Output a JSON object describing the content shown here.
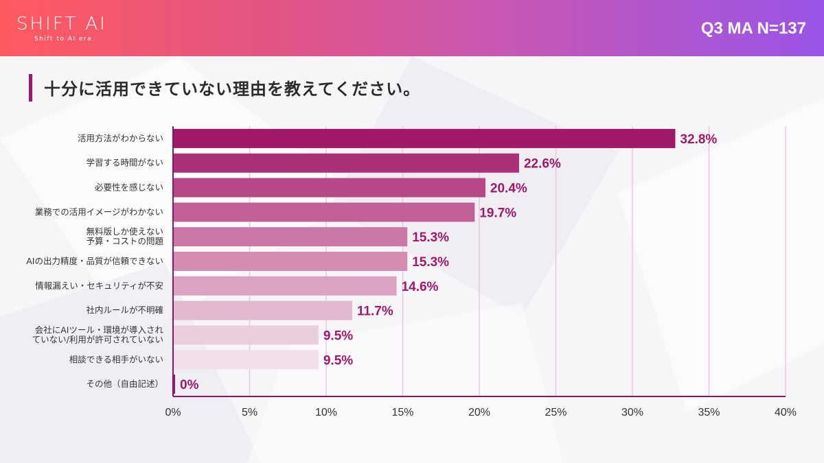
{
  "header": {
    "logo": "SHIFT AI",
    "logo_tagline": "Shift to AI era.",
    "question_label": "Q3 MA N=137"
  },
  "title": "十分に活用できていない理由を教えてください。",
  "colors": {
    "accent": "#a0186a",
    "bars": [
      "#a0186a",
      "#ab3078",
      "#b64886",
      "#c16096",
      "#cc78a6",
      "#d48cb3",
      "#dba2c2",
      "#e3b8d0",
      "#ebcede",
      "#f1dfe9",
      "#f3e6ee"
    ]
  },
  "chart_data": {
    "type": "bar",
    "orientation": "horizontal",
    "categories": [
      [
        "活用方法がわからない"
      ],
      [
        "学習する時間がない"
      ],
      [
        "必要性を感じない"
      ],
      [
        "業務での活用イメージがわかない"
      ],
      [
        "無料版しか使えない",
        "予算・コストの問題"
      ],
      [
        "AIの出力精度・品質が信頼できない"
      ],
      [
        "情報漏えい・セキュリティが不安"
      ],
      [
        "社内ルールが不明確"
      ],
      [
        "会社にAIツール・環境が導入され",
        "ていない/利用が許可されていない"
      ],
      [
        "相談できる相手がいない"
      ],
      [
        "その他（自由記述）"
      ]
    ],
    "values": [
      32.8,
      22.6,
      20.4,
      19.7,
      15.3,
      15.3,
      14.6,
      11.7,
      9.5,
      9.5,
      0
    ],
    "value_labels": [
      "32.8%",
      "22.6%",
      "20.4%",
      "19.7%",
      "15.3%",
      "15.3%",
      "14.6%",
      "11.7%",
      "9.5%",
      "9.5%",
      "0%"
    ],
    "xlim": [
      0,
      40
    ],
    "x_ticks": [
      "0%",
      "5%",
      "10%",
      "15%",
      "20%",
      "25%",
      "30%",
      "35%",
      "40%"
    ],
    "grid": true
  }
}
